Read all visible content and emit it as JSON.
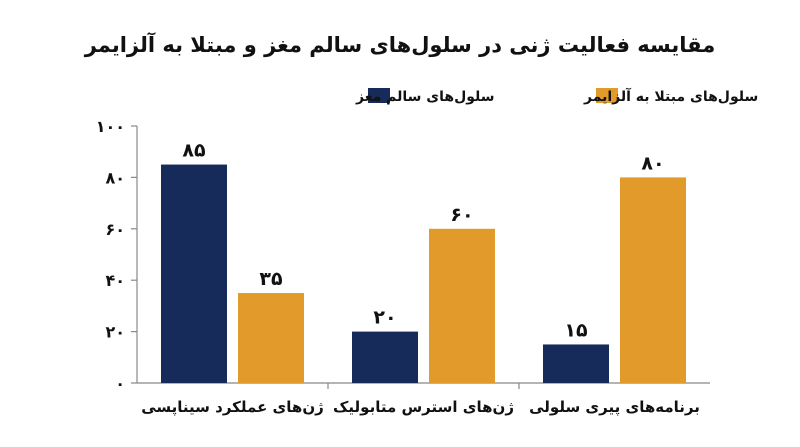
{
  "chart_data": {
    "type": "bar",
    "title": "مقایسه فعالیت ژنی در سلول‌های سالم مغز و مبتلا به آلزایمر",
    "categories": [
      "ژن‌های عملکرد سیناپسی",
      "ژن‌های استرس متابولیک",
      "برنامه‌های پیری سلولی"
    ],
    "series": [
      {
        "name": "سلول‌های سالم مغز",
        "values": [
          85,
          20,
          15
        ],
        "color": "#172b5a",
        "value_labels": [
          "۸۵",
          "۲۰",
          "۱۵"
        ]
      },
      {
        "name": "سلول‌های مبتلا به آلزایمر",
        "values": [
          35,
          60,
          80
        ],
        "color": "#e29a2a",
        "value_labels": [
          "۳۵",
          "۶۰",
          "۸۰"
        ]
      }
    ],
    "ylim": [
      0,
      100
    ],
    "yticks": [
      0,
      20,
      40,
      60,
      80,
      100
    ],
    "ytick_labels": [
      "۰",
      "۲۰",
      "۴۰",
      "۶۰",
      "۸۰",
      "۱۰۰"
    ],
    "xlabel": "",
    "ylabel": "",
    "grid": false,
    "legend_position": "top"
  }
}
